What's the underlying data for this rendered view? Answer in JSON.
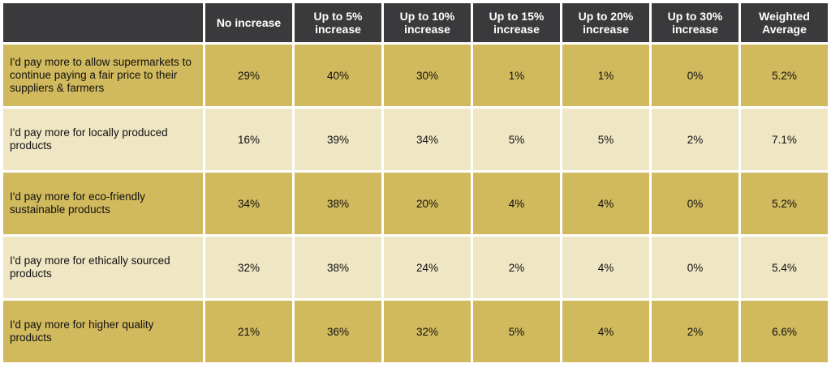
{
  "chart_data": {
    "type": "table",
    "columns": [
      "",
      "No increase",
      "Up to 5% increase",
      "Up to 10% increase",
      "Up to 15% increase",
      "Up to 20% increase",
      "Up to 30% increase",
      "Weighted Average"
    ],
    "rows": [
      {
        "label": "I'd pay more to allow supermarkets to continue paying a fair price to their suppliers & farmers",
        "values": [
          "29%",
          "40%",
          "30%",
          "1%",
          "1%",
          "0%",
          "5.2%"
        ]
      },
      {
        "label": "I'd pay more for locally produced products",
        "values": [
          "16%",
          "39%",
          "34%",
          "5%",
          "5%",
          "2%",
          "7.1%"
        ]
      },
      {
        "label": "I'd pay more for eco-friendly sustainable products",
        "values": [
          "34%",
          "38%",
          "20%",
          "4%",
          "4%",
          "0%",
          "5.2%"
        ]
      },
      {
        "label": "I'd pay more for ethically sourced products",
        "values": [
          "32%",
          "38%",
          "24%",
          "2%",
          "4%",
          "0%",
          "5.4%"
        ]
      },
      {
        "label": "I'd pay more for higher quality products",
        "values": [
          "21%",
          "36%",
          "32%",
          "5%",
          "4%",
          "2%",
          "6.6%"
        ]
      }
    ]
  },
  "colors": {
    "header_bg": "#3a3a3c",
    "row_dark": "#d1b95d",
    "row_light": "#efe6c3"
  }
}
